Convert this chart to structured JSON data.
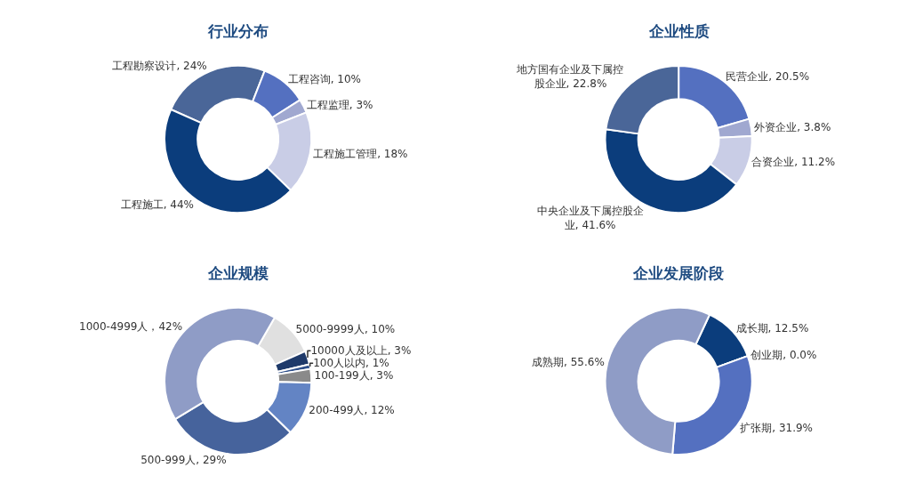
{
  "chart_data": [
    {
      "type": "donut",
      "title": "行业分布",
      "data_labels": true,
      "categories": [
        "工程勘察设计",
        "工程咨询",
        "工程监理",
        "工程施工管理",
        "工程施工"
      ],
      "values": [
        24,
        10,
        3,
        18,
        44
      ],
      "value_labels": [
        ", 24%",
        ", 10%",
        ", 3%",
        ", 18%",
        ", 44%"
      ],
      "colors": [
        "#4a6698",
        "#5470c0",
        "#a0a8d0",
        "#c9cde6",
        "#0b3d7c"
      ]
    },
    {
      "type": "donut",
      "title": "企业性质",
      "data_labels": true,
      "categories": [
        "民营企业",
        "外资企业",
        "合资企业",
        "中央企业及下属控股企业",
        "地方国有企业及下属控股企业"
      ],
      "values": [
        20.5,
        3.8,
        11.2,
        41.6,
        22.8
      ],
      "value_labels": [
        ", 20.5%",
        ", 3.8%",
        ", 11.2%",
        ", 41.6%",
        ", 22.8%"
      ],
      "colors": [
        "#5470c0",
        "#a0a8d0",
        "#c9cde6",
        "#0b3d7c",
        "#4a6698"
      ]
    },
    {
      "type": "donut",
      "title": "企业规模",
      "data_labels": true,
      "categories": [
        "5000-9999人",
        "10000人及以上",
        "100人以内",
        "100-199人",
        "200-499人",
        "500-999人",
        "1000-4999人"
      ],
      "values": [
        10,
        3,
        1,
        3,
        12,
        29,
        42
      ],
      "value_labels": [
        ", 10%",
        ", 3%",
        ", 1%",
        ", 3%",
        ", 12%",
        ", 29%",
        "，42%"
      ],
      "colors": [
        "#e0e0e0",
        "#1f3a6a",
        "#2e4f8a",
        "#8a8a8a",
        "#6384c4",
        "#46639c",
        "#8f9cc6"
      ]
    },
    {
      "type": "donut",
      "title": "企业发展阶段",
      "data_labels": true,
      "categories": [
        "成长期",
        "创业期",
        "扩张期",
        "成熟期"
      ],
      "values": [
        12.5,
        0.0,
        31.9,
        55.6
      ],
      "value_labels": [
        ", 12.5%",
        ", 0.0%",
        ", 31.9%",
        ", 55.6%"
      ],
      "colors": [
        "#0b3d7c",
        "#2a4a8a",
        "#5470c0",
        "#8f9cc6"
      ]
    }
  ]
}
